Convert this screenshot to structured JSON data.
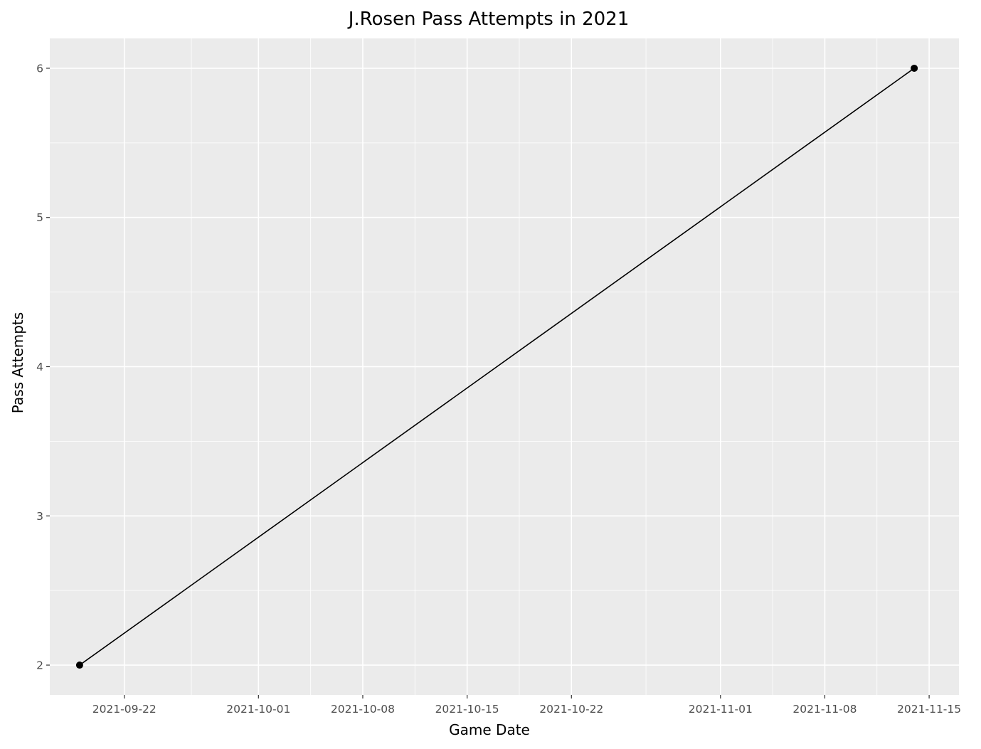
{
  "chart_data": {
    "type": "line",
    "title": "J.Rosen Pass Attempts in 2021",
    "xlabel": "Game Date",
    "ylabel": "Pass Attempts",
    "x_type": "date",
    "xlim": [
      "2021-09-17",
      "2021-11-17"
    ],
    "ylim": [
      1.8,
      6.2
    ],
    "x_ticks": [
      "2021-09-22",
      "2021-10-01",
      "2021-10-08",
      "2021-10-15",
      "2021-10-22",
      "2021-11-01",
      "2021-11-08",
      "2021-11-15"
    ],
    "y_ticks": [
      2,
      3,
      4,
      5,
      6
    ],
    "grid": true,
    "legend": "none",
    "colors": {
      "panel": "#ebebeb",
      "grid": "#ffffff",
      "line": "#000000",
      "point": "#000000"
    },
    "series": [
      {
        "x": [
          "2021-09-19",
          "2021-11-14"
        ],
        "y": [
          2,
          6
        ]
      }
    ]
  }
}
